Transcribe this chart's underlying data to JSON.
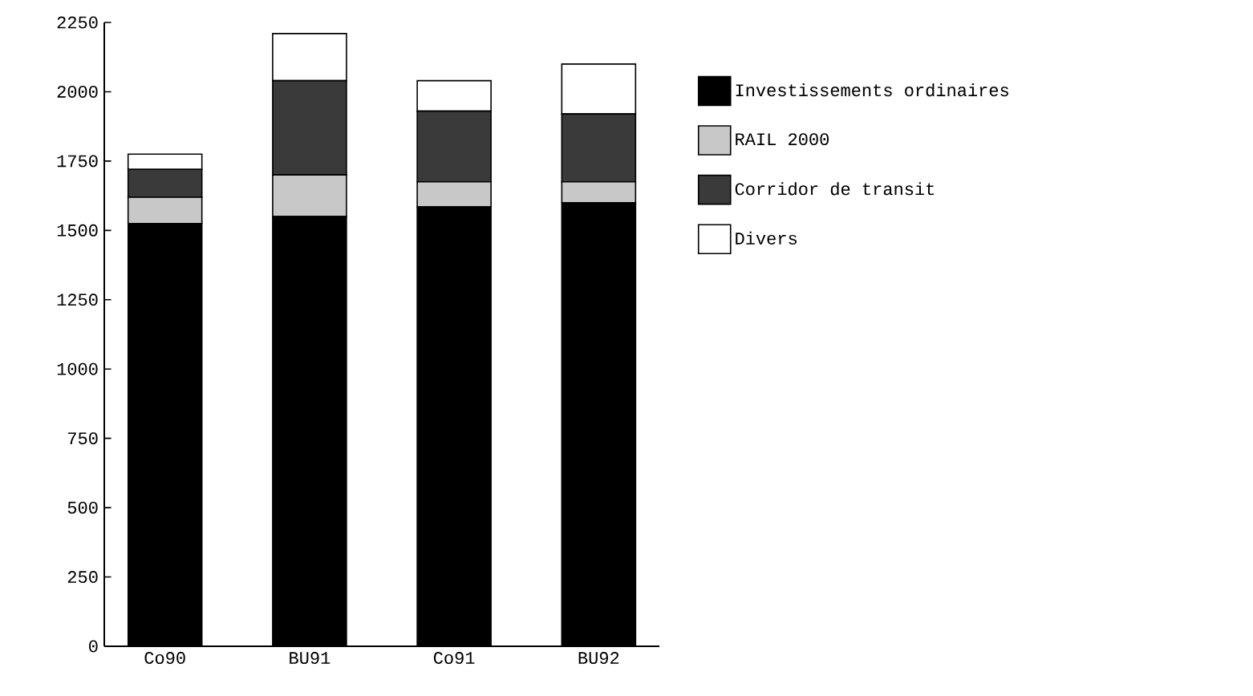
{
  "chart_data": {
    "type": "bar",
    "stacked": true,
    "categories": [
      "Co90",
      "BU91",
      "Co91",
      "BU92"
    ],
    "series": [
      {
        "name": "Investissements ordinaires",
        "color": "#000000",
        "values": [
          1525,
          1550,
          1585,
          1600
        ]
      },
      {
        "name": "RAIL 2000",
        "color": "#c8c8c8",
        "values": [
          95,
          150,
          90,
          75
        ]
      },
      {
        "name": "Corridor de transit",
        "color": "#3a3a3a",
        "values": [
          100,
          340,
          255,
          245
        ]
      },
      {
        "name": "Divers",
        "color": "#ffffff",
        "values": [
          55,
          170,
          110,
          180
        ]
      }
    ],
    "ylim": [
      0,
      2250
    ],
    "yticks": [
      0,
      250,
      500,
      750,
      1000,
      1250,
      1500,
      1750,
      2000,
      2250
    ],
    "grid": false,
    "legend": "right"
  }
}
